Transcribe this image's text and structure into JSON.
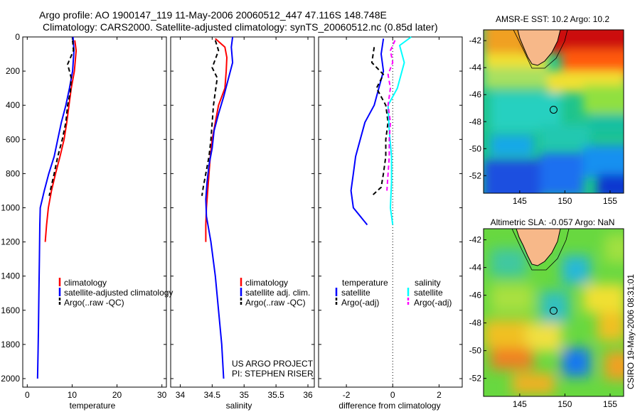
{
  "header": {
    "line1": "Argo profile: AO 1900147_119 11-May-2006 20060512_447 47.116S 148.748E",
    "line2": "Climatology: CARS2000. Satellite-adjusted climatology: synTS_20060512.nc (0.85d later)"
  },
  "colors": {
    "climatology": "#ff0000",
    "satellite": "#0000ff",
    "argo": "#000000",
    "sal_satellite": "#00ffff",
    "sal_argo": "#ff00ff",
    "land": "#f7b889"
  },
  "project": {
    "line1": "US ARGO PROJECT",
    "line2": "PI: STEPHEN RISER"
  },
  "timestamp": "CSIRO 19-May-2006 08:31:01",
  "chart_data": [
    {
      "type": "line",
      "xlabel": "temperature",
      "ylabel": "",
      "xlim": [
        -1,
        31
      ],
      "ylim": [
        2050,
        0
      ],
      "y_reversed": true,
      "xticks": [
        0,
        10,
        20,
        30
      ],
      "yticks": [
        0,
        200,
        400,
        600,
        800,
        1000,
        1200,
        1400,
        1600,
        1800,
        2000
      ],
      "legend": {
        "position": "bottom-right",
        "entries": [
          {
            "label": "climatology",
            "series": "climatology"
          },
          {
            "label": "satellite-adjusted climatology",
            "series": "satellite"
          },
          {
            "label": "Argo(..raw -QC)",
            "series": "argo"
          }
        ]
      },
      "series": [
        {
          "name": "climatology",
          "color_key": "climatology",
          "dash": "solid",
          "points": [
            [
              10.6,
              20
            ],
            [
              10.9,
              80
            ],
            [
              10.5,
              200
            ],
            [
              9.8,
              300
            ],
            [
              9.3,
              400
            ],
            [
              8.8,
              500
            ],
            [
              8.2,
              600
            ],
            [
              7.3,
              700
            ],
            [
              6.3,
              800
            ],
            [
              5.4,
              900
            ],
            [
              4.7,
              1000
            ],
            [
              4.3,
              1100
            ],
            [
              4.0,
              1200
            ]
          ]
        },
        {
          "name": "satellite-adjusted climatology",
          "color_key": "satellite",
          "dash": "solid",
          "points": [
            [
              10.2,
              0
            ],
            [
              10.4,
              80
            ],
            [
              10.1,
              200
            ],
            [
              9.4,
              300
            ],
            [
              8.6,
              400
            ],
            [
              7.6,
              500
            ],
            [
              6.8,
              600
            ],
            [
              6.0,
              700
            ],
            [
              4.8,
              800
            ],
            [
              3.8,
              900
            ],
            [
              2.9,
              1000
            ],
            [
              2.8,
              1100
            ],
            [
              2.7,
              1300
            ],
            [
              2.6,
              1500
            ],
            [
              2.5,
              1700
            ],
            [
              2.4,
              1850
            ],
            [
              2.3,
              2000
            ]
          ]
        },
        {
          "name": "Argo(..raw -QC)",
          "color_key": "argo",
          "dash": "dash",
          "points": [
            [
              10.1,
              20
            ],
            [
              10.3,
              80
            ],
            [
              9.0,
              160
            ],
            [
              9.8,
              240
            ],
            [
              9.6,
              320
            ],
            [
              9.0,
              400
            ],
            [
              8.6,
              500
            ],
            [
              7.8,
              600
            ],
            [
              6.8,
              700
            ],
            [
              6.0,
              800
            ],
            [
              5.3,
              880
            ],
            [
              4.9,
              930
            ]
          ]
        }
      ]
    },
    {
      "type": "line",
      "xlabel": "salinity",
      "ylabel": "",
      "xlim": [
        33.85,
        36.1
      ],
      "ylim": [
        2050,
        0
      ],
      "y_reversed": true,
      "xticks": [
        34,
        34.5,
        35,
        35.5,
        36
      ],
      "legend": {
        "position": "bottom-right",
        "entries": [
          {
            "label": "climatology",
            "series": "climatology"
          },
          {
            "label": "satellite adj. clim.",
            "series": "satellite"
          },
          {
            "label": "Argo(..raw -QC)",
            "series": "argo"
          }
        ]
      },
      "series": [
        {
          "name": "climatology",
          "color_key": "climatology",
          "dash": "solid",
          "points": [
            [
              34.55,
              10
            ],
            [
              34.7,
              60
            ],
            [
              34.73,
              120
            ],
            [
              34.72,
              200
            ],
            [
              34.7,
              300
            ],
            [
              34.6,
              400
            ],
            [
              34.55,
              500
            ],
            [
              34.5,
              600
            ],
            [
              34.47,
              700
            ],
            [
              34.45,
              800
            ],
            [
              34.43,
              900
            ],
            [
              34.41,
              1000
            ],
            [
              34.4,
              1100
            ],
            [
              34.4,
              1200
            ]
          ]
        },
        {
          "name": "satellite adj. clim.",
          "color_key": "satellite",
          "dash": "solid",
          "points": [
            [
              34.82,
              0
            ],
            [
              34.8,
              60
            ],
            [
              34.82,
              150
            ],
            [
              34.75,
              250
            ],
            [
              34.68,
              350
            ],
            [
              34.6,
              450
            ],
            [
              34.53,
              550
            ],
            [
              34.5,
              650
            ],
            [
              34.45,
              750
            ],
            [
              34.42,
              850
            ],
            [
              34.4,
              950
            ],
            [
              34.41,
              1050
            ],
            [
              34.48,
              1200
            ],
            [
              34.55,
              1400
            ],
            [
              34.6,
              1600
            ],
            [
              34.65,
              1800
            ],
            [
              34.68,
              2000
            ]
          ]
        },
        {
          "name": "Argo(..raw -QC)",
          "color_key": "argo",
          "dash": "dash",
          "points": [
            [
              34.55,
              20
            ],
            [
              34.6,
              80
            ],
            [
              34.5,
              180
            ],
            [
              34.58,
              240
            ],
            [
              34.55,
              320
            ],
            [
              34.52,
              400
            ],
            [
              34.5,
              500
            ],
            [
              34.48,
              600
            ],
            [
              34.45,
              700
            ],
            [
              34.4,
              800
            ],
            [
              34.36,
              880
            ],
            [
              34.34,
              930
            ]
          ]
        }
      ]
    },
    {
      "type": "line",
      "xlabel": "difference from climatology",
      "ylabel": "",
      "xlim": [
        -3.2,
        3.0
      ],
      "ylim": [
        2050,
        0
      ],
      "y_reversed": true,
      "xticks": [
        -2,
        0,
        2
      ],
      "zero_line": true,
      "legend": {
        "position": "bottom",
        "temperature_title": "temperature",
        "salinity_title": "salinity",
        "entries": [
          {
            "label": "satellite",
            "series": "temp_satellite"
          },
          {
            "label": "Argo(-adj)",
            "series": "temp_argo"
          },
          {
            "label": "satellite",
            "series": "sal_satellite"
          },
          {
            "label": "Argo(-adj)",
            "series": "sal_argo"
          }
        ]
      },
      "series": [
        {
          "name": "temperature satellite",
          "key": "temp_satellite",
          "color_key": "satellite",
          "dash": "solid",
          "points": [
            [
              -0.4,
              10
            ],
            [
              -0.5,
              100
            ],
            [
              -0.4,
              200
            ],
            [
              -0.6,
              300
            ],
            [
              -0.8,
              400
            ],
            [
              -1.2,
              500
            ],
            [
              -1.4,
              600
            ],
            [
              -1.6,
              700
            ],
            [
              -1.7,
              800
            ],
            [
              -1.8,
              900
            ],
            [
              -1.7,
              1000
            ],
            [
              -1.1,
              1100
            ]
          ]
        },
        {
          "name": "temperature Argo(-adj)",
          "key": "temp_argo",
          "color_key": "argo",
          "dash": "dash",
          "points": [
            [
              -0.8,
              60
            ],
            [
              -0.9,
              150
            ],
            [
              -0.4,
              220
            ],
            [
              -0.7,
              300
            ],
            [
              -0.3,
              400
            ],
            [
              -0.2,
              500
            ],
            [
              -0.3,
              600
            ],
            [
              -0.3,
              700
            ],
            [
              -0.4,
              800
            ],
            [
              -0.5,
              880
            ],
            [
              -0.9,
              930
            ]
          ]
        },
        {
          "name": "salinity satellite",
          "key": "sal_satellite",
          "color_key": "sal_satellite",
          "dash": "solid",
          "points": [
            [
              0.8,
              0
            ],
            [
              0.3,
              50
            ],
            [
              0.5,
              150
            ],
            [
              0.2,
              300
            ],
            [
              -0.2,
              400
            ],
            [
              -0.15,
              550
            ],
            [
              -0.05,
              700
            ],
            [
              -0.05,
              850
            ],
            [
              -0.1,
              1000
            ],
            [
              0.0,
              1100
            ]
          ]
        },
        {
          "name": "salinity Argo(-adj)",
          "key": "sal_argo",
          "color_key": "sal_argo",
          "dash": "dash",
          "points": [
            [
              0.1,
              20
            ],
            [
              -0.1,
              80
            ],
            [
              0.0,
              150
            ],
            [
              -0.2,
              220
            ],
            [
              -0.1,
              300
            ],
            [
              -0.2,
              400
            ],
            [
              -0.1,
              500
            ],
            [
              -0.15,
              600
            ],
            [
              -0.15,
              700
            ],
            [
              -0.2,
              800
            ],
            [
              -0.25,
              900
            ]
          ]
        }
      ]
    },
    {
      "type": "heatmap",
      "title": "AMSR-E SST: 10.2 Argo: 10.2",
      "xticks": [
        145,
        150,
        155
      ],
      "yticks": [
        -42,
        -44,
        -46,
        -48,
        -50,
        -52
      ],
      "xlim": [
        141,
        156.5
      ],
      "ylim": [
        -53.3,
        -41.2
      ],
      "colormap": "jet",
      "argo_position": {
        "lon": 148.748,
        "lat": -47.116
      }
    },
    {
      "type": "heatmap",
      "title": "Altimetric SLA: -0.057 Argo: NaN",
      "xticks": [
        145,
        150,
        155
      ],
      "yticks": [
        -42,
        -44,
        -46,
        -48,
        -50,
        -52
      ],
      "xlim": [
        141,
        156.5
      ],
      "ylim": [
        -53.3,
        -41.2
      ],
      "colormap": "jet",
      "argo_position": {
        "lon": 148.748,
        "lat": -47.116
      }
    }
  ]
}
